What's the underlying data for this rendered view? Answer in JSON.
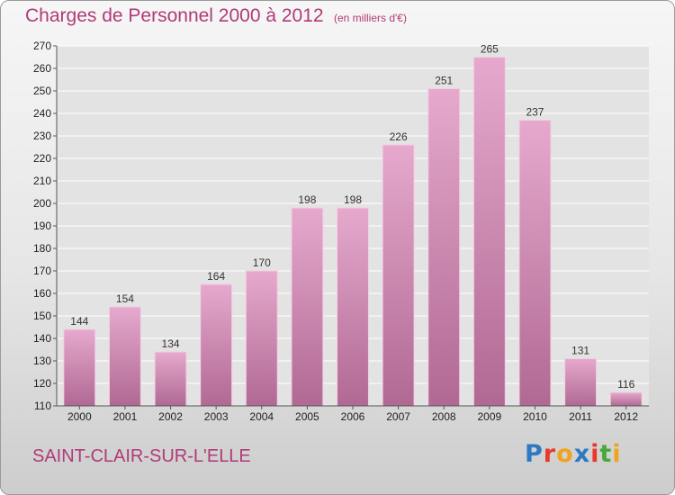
{
  "header": {
    "title": "Charges de Personnel 2000 à 2012",
    "unit_note": "(en milliers d'€)"
  },
  "footer": {
    "commune": "SAINT-CLAIR-SUR-L'ELLE",
    "logo_text": "Proxiti",
    "logo_colors": [
      "#2e79c4",
      "#e8392b",
      "#f0a31c",
      "#2e79c4",
      "#e8392b",
      "#49a83a",
      "#f0a31c"
    ]
  },
  "colors": {
    "accent": "#b03a78",
    "bar_light": "#e6a9cd",
    "bar_dark": "#b06993",
    "plot_bg": "#e3e3e3",
    "grid": "#ffffff"
  },
  "chart_data": {
    "type": "bar",
    "title": "Charges de Personnel 2000 à 2012",
    "subtitle": "(en milliers d'€)",
    "xlabel": "",
    "ylabel": "",
    "categories": [
      "2000",
      "2001",
      "2002",
      "2003",
      "2004",
      "2005",
      "2006",
      "2007",
      "2008",
      "2009",
      "2010",
      "2011",
      "2012"
    ],
    "values": [
      144,
      154,
      134,
      164,
      170,
      198,
      198,
      226,
      251,
      265,
      237,
      131,
      116
    ],
    "ylim": [
      110,
      270
    ],
    "yticks": [
      110,
      120,
      130,
      140,
      150,
      160,
      170,
      180,
      190,
      200,
      210,
      220,
      230,
      240,
      250,
      260,
      270
    ],
    "grid": true,
    "legend": "none"
  }
}
